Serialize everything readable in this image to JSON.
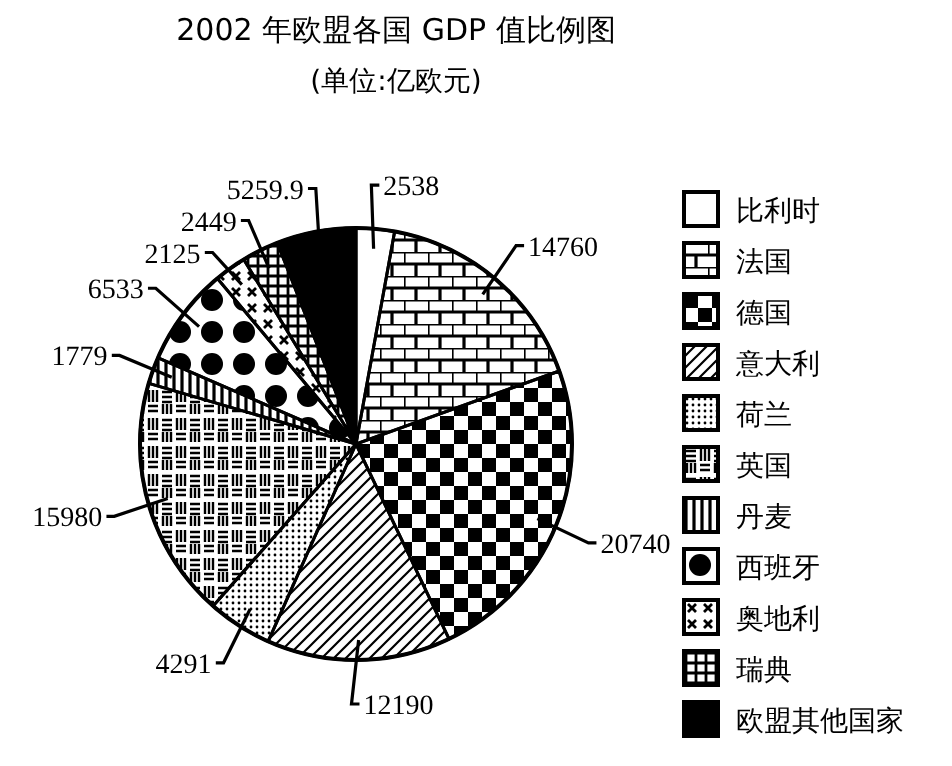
{
  "chart_data": {
    "type": "pie",
    "title": "2002 年欧盟各国 GDP 值比例图",
    "subtitle": "(单位:亿欧元)",
    "categories": [
      "比利时",
      "法国",
      "德国",
      "意大利",
      "荷兰",
      "英国",
      "丹麦",
      "西班牙",
      "奥地利",
      "瑞典",
      "欧盟其他国家"
    ],
    "values": [
      2538,
      14760,
      20740,
      12190,
      4291,
      15980,
      1779,
      6533,
      2125,
      2449,
      5259.9
    ],
    "colors": [
      "#ffffff",
      "#ffffff",
      "#ffffff",
      "#ffffff",
      "#ffffff",
      "#ffffff",
      "#ffffff",
      "#ffffff",
      "#ffffff",
      "#ffffff",
      "#000000"
    ],
    "data_labels": true,
    "legend": "right"
  }
}
